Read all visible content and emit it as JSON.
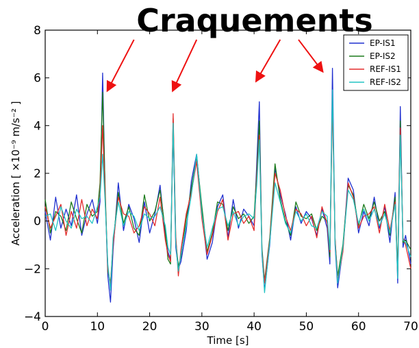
{
  "chart_data": {
    "type": "line",
    "title": "Craquements",
    "xlabel": "Time [s]",
    "ylabel": "Acceleration [ ×10⁻⁹ m/s⁻² ]",
    "xlim": [
      0,
      70
    ],
    "ylim": [
      -4,
      8
    ],
    "xticks": [
      "0",
      "10",
      "20",
      "30",
      "40",
      "50",
      "60",
      "70"
    ],
    "yticks": [
      "−4",
      "−2",
      "0",
      "2",
      "4",
      "6",
      "8"
    ],
    "legend_position": "top-right",
    "grid": false,
    "annotations": {
      "arrow_color": "#ee1111",
      "arrows": [
        {
          "from": [
            17,
            7.6
          ],
          "to": [
            12,
            5.5
          ]
        },
        {
          "from": [
            29,
            7.6
          ],
          "to": [
            24.5,
            5.5
          ]
        },
        {
          "from": [
            45,
            7.6
          ],
          "to": [
            40.5,
            5.9
          ]
        },
        {
          "from": [
            48.5,
            7.6
          ],
          "to": [
            53,
            6.3
          ]
        }
      ]
    },
    "x": [
      0,
      1,
      2,
      3,
      4,
      5,
      6,
      7,
      8,
      9,
      10,
      10.5,
      11,
      11.5,
      12,
      12.5,
      13,
      14,
      15,
      16,
      17,
      18,
      19,
      20,
      21,
      22,
      23,
      23.5,
      24,
      24.5,
      25,
      25.5,
      26,
      27,
      28,
      29,
      30,
      31,
      32,
      33,
      34,
      35,
      36,
      37,
      38,
      39,
      40,
      40.5,
      41,
      41.5,
      42,
      43,
      44,
      45,
      46,
      47,
      48,
      49,
      50,
      51,
      52,
      53,
      54,
      54.5,
      55,
      55.5,
      56,
      57,
      58,
      59,
      60,
      61,
      62,
      63,
      64,
      65,
      66,
      67,
      67.5,
      68,
      68.5,
      69,
      70
    ],
    "series": [
      {
        "name": "EP-IS1",
        "color": "#1f2fcf",
        "values": [
          0.4,
          -0.8,
          1.0,
          -0.3,
          0.5,
          -0.2,
          1.1,
          -0.6,
          0.3,
          0.9,
          -0.1,
          0.8,
          6.2,
          1.0,
          -2.3,
          -3.4,
          -1.2,
          1.6,
          -0.4,
          0.7,
          0.1,
          -0.9,
          0.8,
          -0.5,
          0.3,
          1.5,
          -0.6,
          -1.3,
          -1.6,
          3.9,
          -1.1,
          -2.0,
          -1.7,
          -0.4,
          1.7,
          2.8,
          0.4,
          -1.6,
          -0.9,
          0.6,
          1.1,
          -0.7,
          0.9,
          -0.3,
          0.5,
          0.2,
          -0.2,
          2.4,
          5.0,
          -1.4,
          -2.9,
          -1.0,
          2.2,
          1.1,
          0.3,
          -0.8,
          0.6,
          -0.1,
          0.4,
          0.1,
          -0.6,
          0.5,
          -0.3,
          -1.8,
          6.4,
          -1.0,
          -2.8,
          -1.2,
          1.8,
          1.3,
          -0.5,
          0.4,
          -0.2,
          1.0,
          -0.3,
          0.6,
          -0.9,
          1.2,
          -2.6,
          4.8,
          -1.1,
          -0.6,
          -1.8
        ]
      },
      {
        "name": "EP-IS2",
        "color": "#1a7a1a",
        "values": [
          0.9,
          -0.5,
          0.4,
          0.2,
          -0.4,
          0.8,
          0.1,
          -0.5,
          0.7,
          0.2,
          0.4,
          1.6,
          5.4,
          1.2,
          -2.1,
          -2.6,
          -0.9,
          1.2,
          -0.1,
          0.6,
          -0.3,
          -0.6,
          1.1,
          0.0,
          0.4,
          1.3,
          -0.4,
          -1.6,
          -1.8,
          4.3,
          -0.8,
          -1.9,
          -1.5,
          0.1,
          1.4,
          2.7,
          0.6,
          -1.3,
          -0.5,
          0.8,
          0.7,
          -0.4,
          0.6,
          0.1,
          0.3,
          -0.1,
          0.2,
          2.0,
          4.2,
          -1.1,
          -2.5,
          -0.7,
          2.4,
          0.9,
          0.0,
          -0.6,
          0.8,
          0.2,
          0.1,
          0.3,
          -0.4,
          0.2,
          0.0,
          -1.5,
          5.2,
          -0.8,
          -2.3,
          -1.0,
          1.5,
          1.1,
          -0.2,
          0.7,
          0.1,
          0.8,
          0.0,
          0.4,
          -0.6,
          1.0,
          -2.1,
          4.2,
          -0.9,
          -0.8,
          -1.2
        ]
      },
      {
        "name": "REF-IS1",
        "color": "#e32b2b",
        "values": [
          0.6,
          -0.3,
          0.2,
          0.7,
          -0.6,
          0.4,
          -0.3,
          0.9,
          -0.2,
          0.5,
          0.1,
          1.2,
          4.0,
          0.9,
          -2.0,
          -2.7,
          -1.0,
          1.0,
          0.3,
          0.2,
          -0.5,
          -0.2,
          0.6,
          0.3,
          -0.2,
          1.0,
          -0.8,
          -1.4,
          -1.7,
          4.5,
          -0.6,
          -2.3,
          -1.2,
          0.3,
          1.2,
          2.5,
          0.1,
          -1.4,
          -0.6,
          0.4,
          0.9,
          -0.8,
          0.3,
          0.4,
          -0.1,
          0.2,
          -0.4,
          1.8,
          3.6,
          -1.2,
          -2.6,
          -0.8,
          2.0,
          1.3,
          0.2,
          -0.4,
          0.5,
          0.3,
          -0.2,
          0.2,
          -0.7,
          0.6,
          -0.1,
          -1.3,
          4.9,
          -0.7,
          -2.5,
          -1.3,
          1.6,
          1.0,
          -0.3,
          0.2,
          0.3,
          0.6,
          -0.5,
          0.7,
          -0.4,
          0.8,
          -2.3,
          3.9,
          -0.7,
          -1.0,
          -2.0
        ]
      },
      {
        "name": "REF-IS2",
        "color": "#22c4c4",
        "values": [
          0.2,
          0.3,
          -0.4,
          0.6,
          0.0,
          -0.3,
          0.5,
          0.1,
          0.2,
          -0.1,
          0.6,
          1.0,
          2.8,
          0.7,
          -1.8,
          -2.9,
          -0.7,
          0.8,
          -0.2,
          0.4,
          0.2,
          -0.4,
          0.3,
          0.1,
          0.2,
          0.6,
          -0.2,
          -1.1,
          -1.4,
          4.1,
          -0.9,
          -2.1,
          -1.4,
          -0.2,
          1.1,
          2.8,
          0.3,
          -1.1,
          -0.3,
          0.5,
          0.6,
          -0.2,
          0.4,
          -0.2,
          0.2,
          0.3,
          0.1,
          1.5,
          3.4,
          -1.3,
          -3.0,
          -0.9,
          1.6,
          0.8,
          -0.1,
          -0.5,
          0.4,
          0.0,
          0.3,
          -0.2,
          -0.3,
          0.4,
          0.2,
          -1.2,
          5.5,
          -0.9,
          -2.6,
          -1.1,
          1.3,
          0.9,
          -0.1,
          0.5,
          0.0,
          0.5,
          -0.2,
          0.3,
          -0.5,
          0.7,
          -2.4,
          3.6,
          -0.8,
          -0.9,
          -1.5
        ]
      }
    ]
  }
}
